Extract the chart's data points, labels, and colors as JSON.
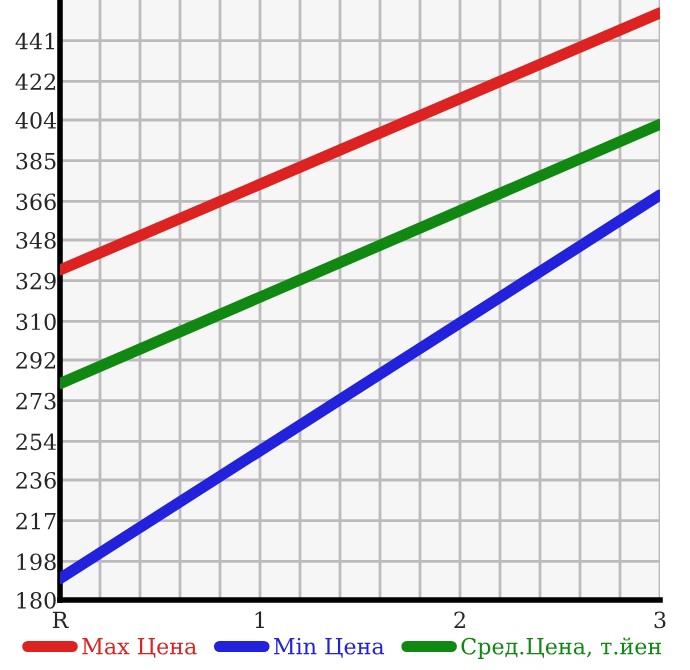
{
  "chart_data": {
    "type": "line",
    "x": [
      0,
      3
    ],
    "series": [
      {
        "name": "Max Цена",
        "color": "#dd2222",
        "values": [
          334,
          454
        ]
      },
      {
        "name": "Min Цена",
        "color": "#2222dd",
        "values": [
          190,
          369
        ]
      },
      {
        "name": "Сред.Цена, т.йен",
        "color": "#118811",
        "values": [
          281,
          402
        ]
      }
    ],
    "xlim": [
      0,
      3
    ],
    "xticks": [
      {
        "value": 0,
        "label": "R"
      },
      {
        "value": 0.2,
        "label": null
      },
      {
        "value": 0.4,
        "label": null
      },
      {
        "value": 0.6,
        "label": null
      },
      {
        "value": 0.8,
        "label": null
      },
      1,
      {
        "value": 1.2,
        "label": null
      },
      {
        "value": 1.4,
        "label": null
      },
      {
        "value": 1.6,
        "label": null
      },
      {
        "value": 1.8,
        "label": null
      },
      2,
      {
        "value": 2.2,
        "label": null
      },
      {
        "value": 2.4,
        "label": null
      },
      {
        "value": 2.6,
        "label": null
      },
      {
        "value": 2.8,
        "label": null
      },
      3
    ],
    "ylim": [
      180,
      460
    ],
    "yticks": [
      180,
      198,
      217,
      236,
      254,
      273,
      292,
      310,
      329,
      348,
      366,
      385,
      404,
      422,
      441
    ],
    "grid": true,
    "legend": "bottom",
    "marker": "none",
    "line_style": "solid"
  }
}
